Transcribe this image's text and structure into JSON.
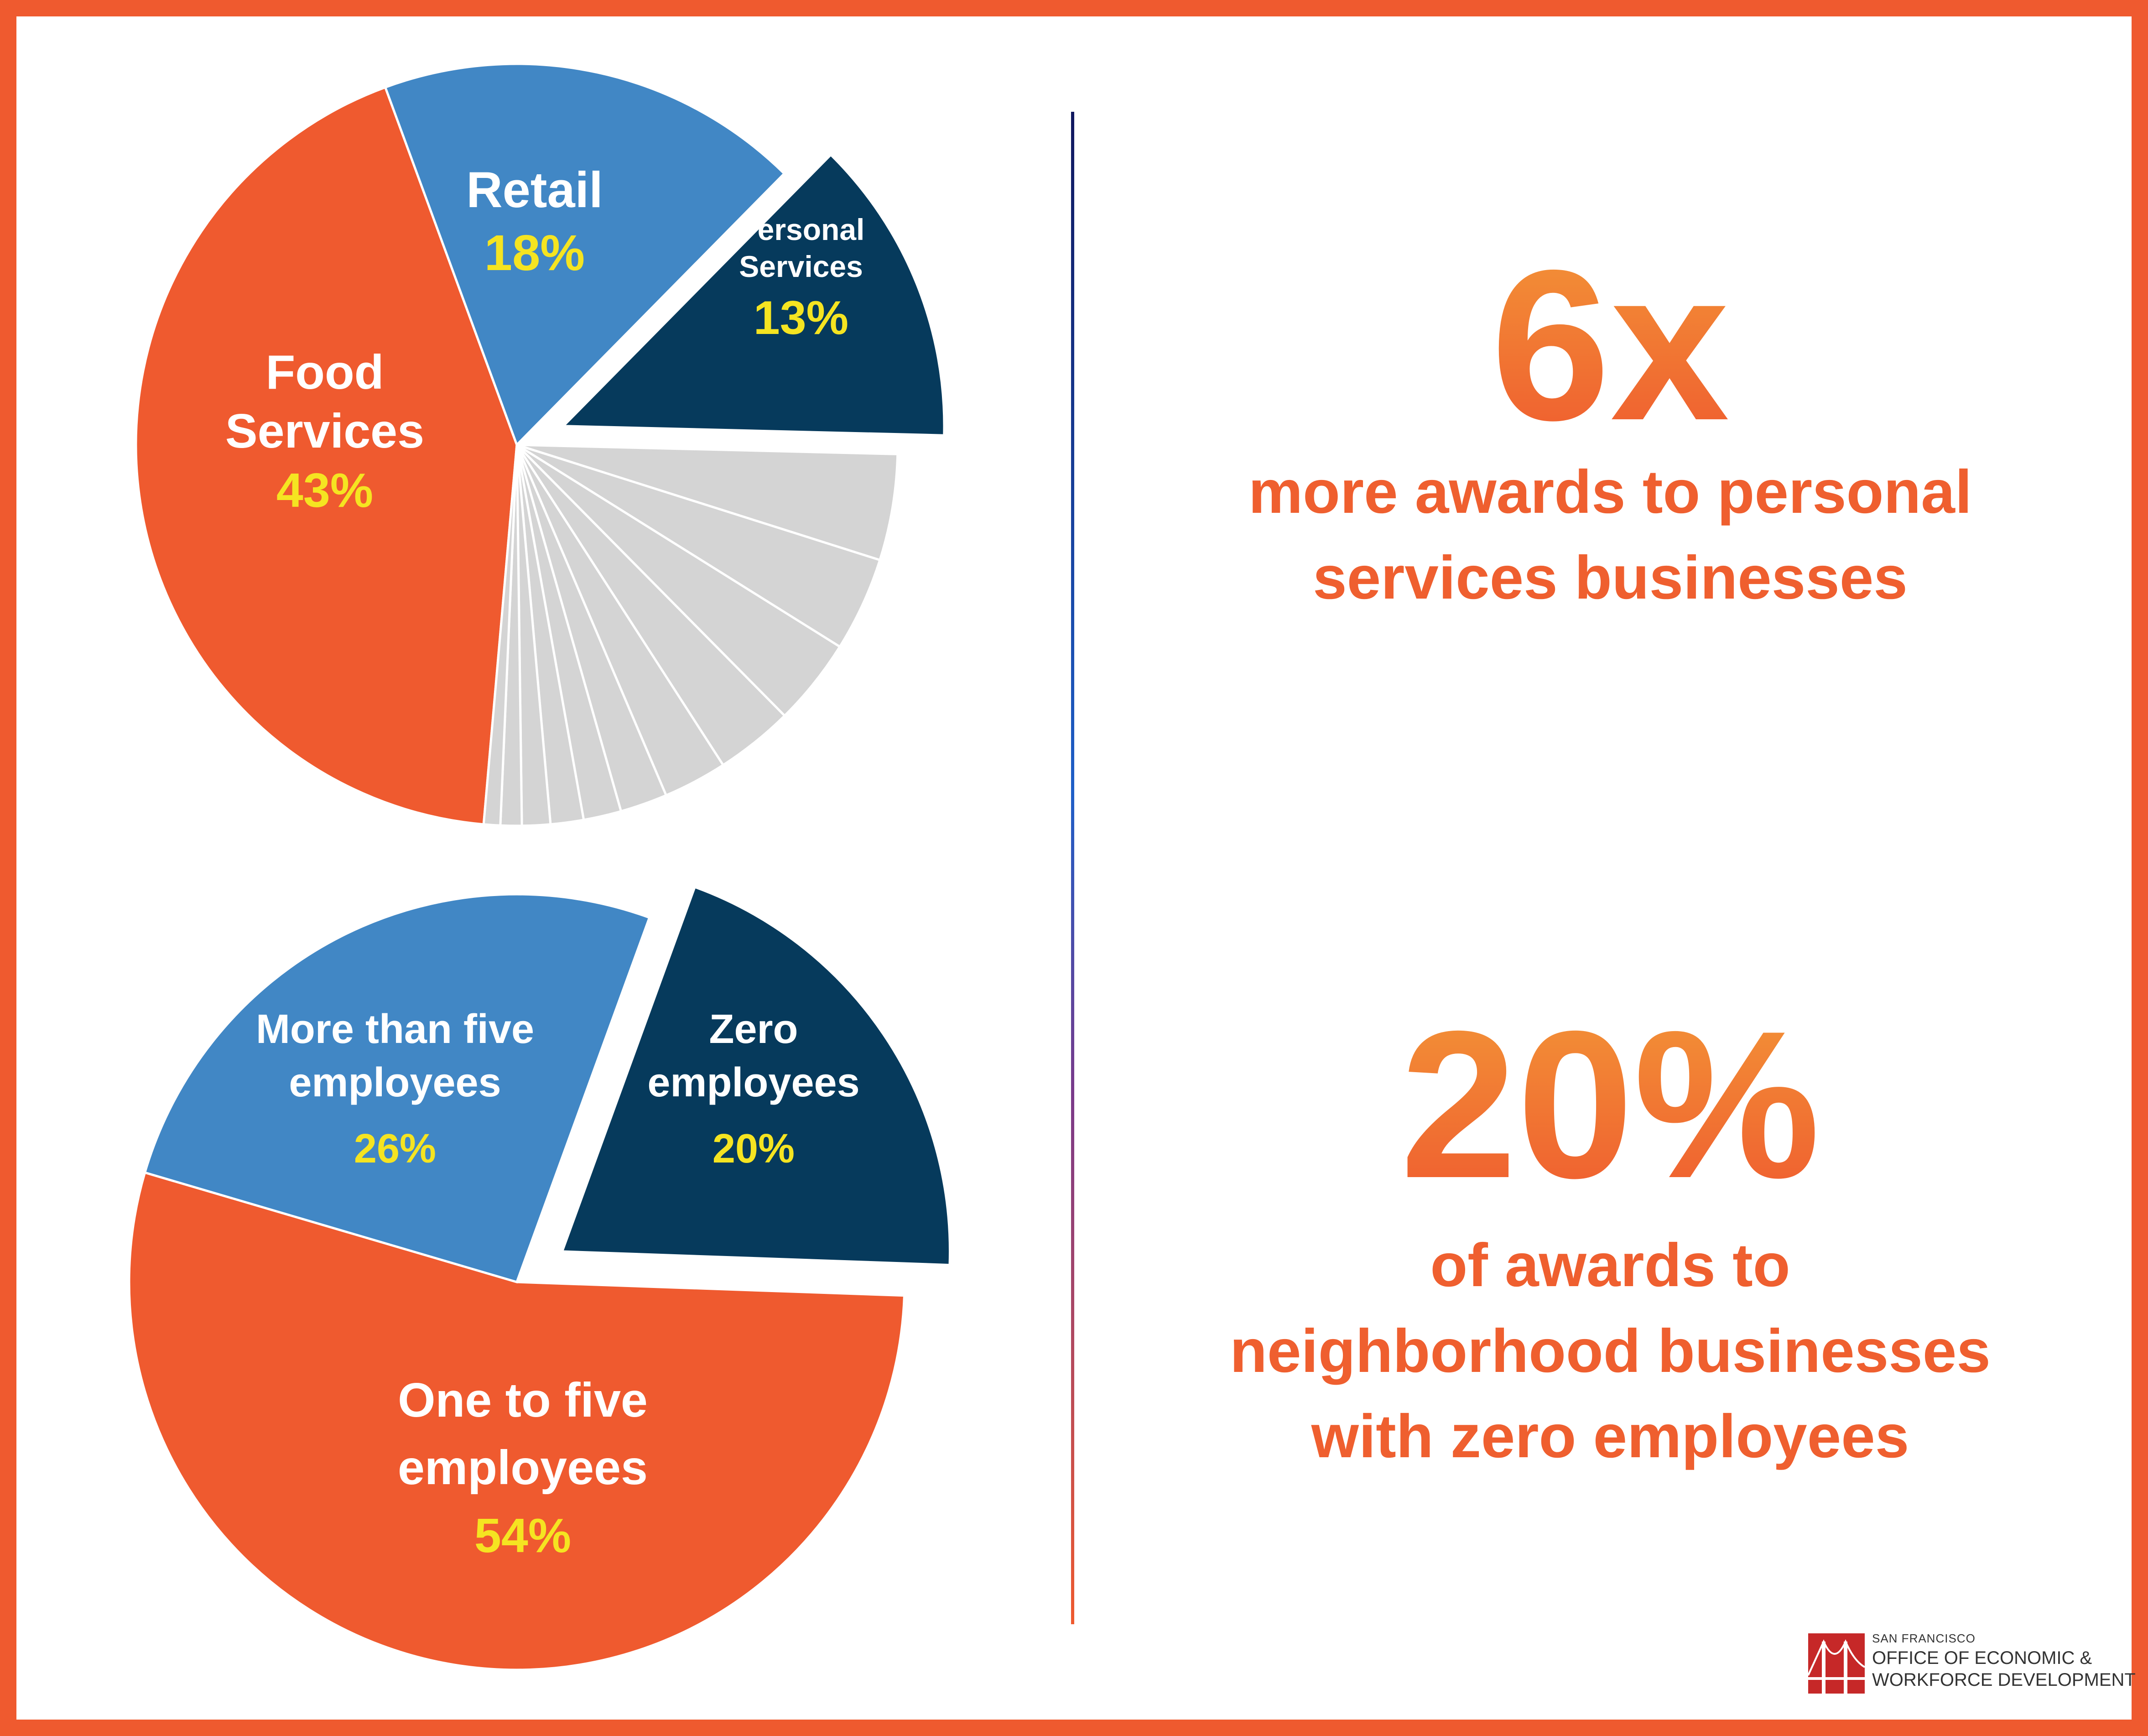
{
  "colors": {
    "orange": "#ef5a2f",
    "blue": "#4187c5",
    "navy": "#063a5c",
    "gray": "#d4d4d4",
    "yellow": "#f5e421"
  },
  "chart_data": [
    {
      "type": "pie",
      "unit": "%",
      "slices": [
        {
          "label": "Food Services",
          "value": 43,
          "pct_label": "43%",
          "color": "#ef5a2f",
          "exploded": false
        },
        {
          "label": "Retail",
          "value": 18,
          "pct_label": "18%",
          "color": "#4187c5",
          "exploded": false
        },
        {
          "label": "Personal Services",
          "value": 13,
          "pct_label": "13%",
          "color": "#063a5c",
          "exploded": true
        },
        {
          "label": "",
          "value": 4.5,
          "color": "#d4d4d4"
        },
        {
          "label": "",
          "value": 4,
          "color": "#d4d4d4"
        },
        {
          "label": "",
          "value": 3.7,
          "color": "#d4d4d4"
        },
        {
          "label": "",
          "value": 3.3,
          "color": "#d4d4d4"
        },
        {
          "label": "",
          "value": 2.7,
          "color": "#d4d4d4"
        },
        {
          "label": "",
          "value": 2,
          "color": "#d4d4d4"
        },
        {
          "label": "",
          "value": 1.6,
          "color": "#d4d4d4"
        },
        {
          "label": "",
          "value": 1.4,
          "color": "#d4d4d4"
        },
        {
          "label": "",
          "value": 1.2,
          "color": "#d4d4d4"
        },
        {
          "label": "",
          "value": 0.9,
          "color": "#d4d4d4"
        },
        {
          "label": "",
          "value": 0.7,
          "color": "#d4d4d4"
        }
      ]
    },
    {
      "type": "pie",
      "unit": "%",
      "slices": [
        {
          "label": "One to five employees",
          "value": 54,
          "pct_label": "54%",
          "color": "#ef5a2f",
          "exploded": false
        },
        {
          "label": "More than five employees",
          "value": 26,
          "pct_label": "26%",
          "color": "#4187c5",
          "exploded": false
        },
        {
          "label": "Zero employees",
          "value": 20,
          "pct_label": "20%",
          "color": "#063a5c",
          "exploded": true
        }
      ]
    }
  ],
  "stats": [
    {
      "big": "6x",
      "lines": [
        "more awards to personal",
        "services businesses"
      ]
    },
    {
      "big": "20%",
      "lines": [
        "of awards to",
        "neighborhood businesses",
        "with zero employees"
      ]
    }
  ],
  "logo": {
    "small": "SAN FRANCISCO",
    "line1": "OFFICE OF ECONOMIC &",
    "line2": "WORKFORCE DEVELOPMENT"
  }
}
